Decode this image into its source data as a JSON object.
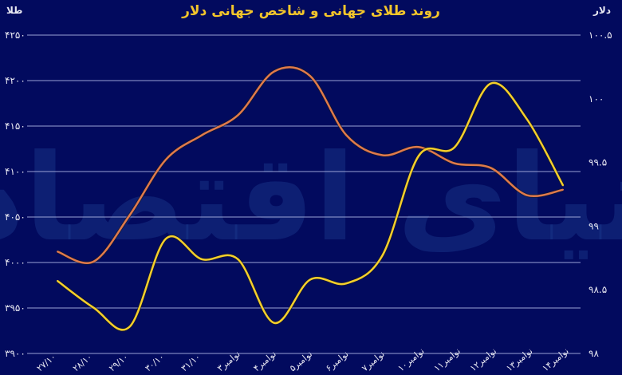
{
  "chart_data": {
    "type": "line",
    "title": "روند طلای جهانی و شاخص جهانی دلار",
    "left_axis": {
      "label": "طلا",
      "ylim": [
        3900,
        4250
      ],
      "ticks": [
        3900,
        3950,
        4000,
        4050,
        4100,
        4150,
        4200,
        4250
      ],
      "tick_labels": [
        "۳۹۰۰",
        "۳۹۵۰",
        "۴۰۰۰",
        "۴۰۵۰",
        "۴۱۰۰",
        "۴۱۵۰",
        "۴۲۰۰",
        "۴۲۵۰"
      ]
    },
    "right_axis": {
      "label": "دلار",
      "ylim": [
        98,
        100.5
      ],
      "ticks": [
        98,
        98.5,
        99,
        99.5,
        100,
        100.5
      ],
      "tick_labels": [
        "۹۸",
        "۹۸.۵",
        "۹۹",
        "۹۹.۵",
        "۱۰۰",
        "۱۰۰.۵"
      ]
    },
    "categories": [
      "۲۷/۱۰",
      "۲۸/۱۰",
      "۲۹/۱۰",
      "۳۰/۱۰",
      "۳۱/۱۰",
      "۳نوامبر",
      "۴نوامبر",
      "۵نوامبر",
      "۶نوامبر",
      "۷نوامبر",
      "۱۰نوامبر",
      "۱۱نوامبر",
      "۱۲نوامبر",
      "۱۳نوامبر",
      "۱۴نوامبر"
    ],
    "grid": true,
    "series": [
      {
        "axis": "left",
        "color": "#e07a4a",
        "values": [
          4012,
          4001,
          4052,
          4113,
          4140,
          4162,
          4210,
          4205,
          4140,
          4118,
          4127,
          4109,
          4104,
          4074,
          4080
        ]
      },
      {
        "axis": "right",
        "color": "#f5cf2a",
        "values": [
          98.57,
          98.36,
          98.21,
          98.9,
          98.74,
          98.74,
          98.24,
          98.58,
          98.55,
          98.77,
          99.55,
          99.62,
          100.12,
          99.84,
          99.32
        ]
      }
    ]
  },
  "watermark": "دنیای اقتصاد"
}
